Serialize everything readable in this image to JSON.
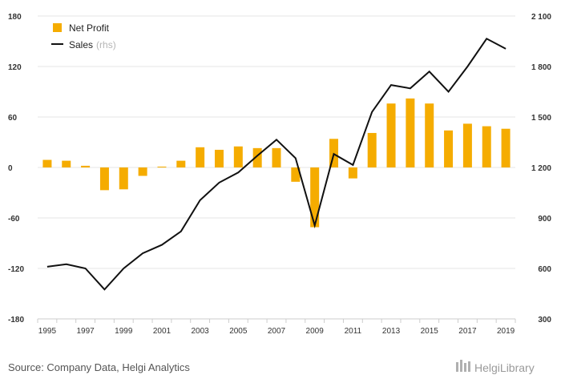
{
  "chart_data": {
    "type": "bar+line",
    "categories": [
      "1995",
      "1996",
      "1997",
      "1998",
      "1999",
      "2000",
      "2001",
      "2002",
      "2003",
      "2004",
      "2005",
      "2006",
      "2007",
      "2008",
      "2009",
      "2010",
      "2011",
      "2012",
      "2013",
      "2014",
      "2015",
      "2016",
      "2017",
      "2018",
      "2019"
    ],
    "x_tick_labels": [
      "1995",
      "1997",
      "1999",
      "2001",
      "2003",
      "2005",
      "2007",
      "2009",
      "2011",
      "2013",
      "2015",
      "2017",
      "2019"
    ],
    "series": [
      {
        "name": "Net Profit",
        "type": "bar",
        "axis": "left",
        "color": "#F5AC00",
        "values": [
          9,
          8,
          2,
          -27,
          -26,
          -10,
          1,
          8,
          24,
          21,
          25,
          23,
          23,
          -17,
          -71,
          34,
          -13,
          41,
          76,
          82,
          76,
          44,
          52,
          49,
          46
        ]
      },
      {
        "name": "Sales",
        "name_suffix": "(rhs)",
        "type": "line",
        "axis": "right",
        "color": "#111111",
        "values": [
          610,
          625,
          600,
          475,
          600,
          690,
          740,
          820,
          1005,
          1110,
          1170,
          1270,
          1365,
          1255,
          855,
          1280,
          1215,
          1530,
          1690,
          1670,
          1770,
          1650,
          1800,
          1965,
          1905
        ]
      }
    ],
    "y_left": {
      "ticks": [
        "180",
        "120",
        "60",
        "0",
        "-60",
        "-120",
        "-180"
      ],
      "ylim": [
        -180,
        180
      ]
    },
    "y_right": {
      "ticks": [
        "2 100",
        "1 800",
        "1 500",
        "1 200",
        "900",
        "600",
        "300"
      ],
      "ylim": [
        300,
        2100
      ]
    },
    "grid": true,
    "legend_position": "top-left"
  },
  "footer": {
    "source": "Source: Company Data, Helgi Analytics",
    "brand": "HelgiLibrary"
  },
  "colors": {
    "bar": "#F5AC00",
    "line": "#111111",
    "grid": "#e6e6e6"
  }
}
